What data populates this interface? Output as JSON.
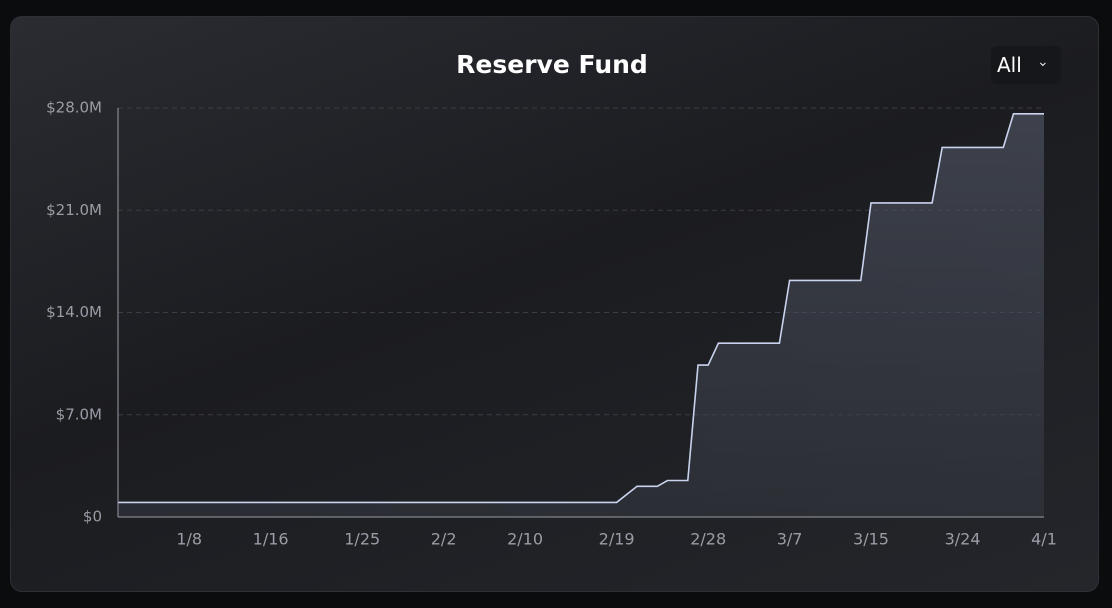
{
  "dropdown": {
    "selected": "All"
  },
  "chart_data": {
    "type": "area",
    "title": "Reserve Fund",
    "x": [
      "1/1",
      "2/19",
      "2/21",
      "2/23",
      "2/24",
      "2/26",
      "2/27",
      "2/28",
      "2/29",
      "3/6",
      "3/7",
      "3/14",
      "3/15",
      "3/21",
      "3/22",
      "3/28",
      "3/29",
      "4/1"
    ],
    "values": [
      1.0,
      1.0,
      2.1,
      2.1,
      2.5,
      2.5,
      10.4,
      10.4,
      11.9,
      11.9,
      16.2,
      16.2,
      21.5,
      21.5,
      25.3,
      25.3,
      27.6,
      27.6
    ],
    "color": "#c9d3ee",
    "xlim": [
      "1/1",
      "4/1"
    ],
    "xticks": [
      "1/8",
      "1/16",
      "1/25",
      "2/2",
      "2/10",
      "2/19",
      "2/28",
      "3/7",
      "3/15",
      "3/24",
      "4/1"
    ],
    "ylim": [
      0,
      28
    ],
    "yticks": [
      {
        "value": 0,
        "label": "$0"
      },
      {
        "value": 7,
        "label": "$7.0M"
      },
      {
        "value": 14,
        "label": "$14.0M"
      },
      {
        "value": 21,
        "label": "$21.0M"
      },
      {
        "value": 28,
        "label": "$28.0M"
      }
    ],
    "grid": true
  }
}
